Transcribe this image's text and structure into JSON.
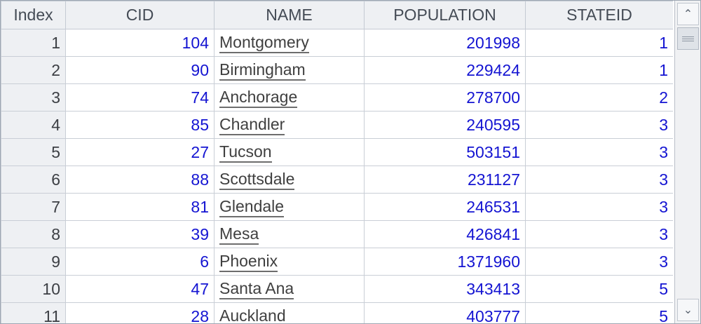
{
  "columns": {
    "index": "Index",
    "cid": "CID",
    "name": "NAME",
    "population": "POPULATION",
    "stateid": "STATEID"
  },
  "rows": [
    {
      "index": "1",
      "cid": "104",
      "name": "Montgomery",
      "population": "201998",
      "stateid": "1"
    },
    {
      "index": "2",
      "cid": "90",
      "name": "Birmingham",
      "population": "229424",
      "stateid": "1"
    },
    {
      "index": "3",
      "cid": "74",
      "name": "Anchorage",
      "population": "278700",
      "stateid": "2"
    },
    {
      "index": "4",
      "cid": "85",
      "name": "Chandler",
      "population": "240595",
      "stateid": "3"
    },
    {
      "index": "5",
      "cid": "27",
      "name": "Tucson",
      "population": "503151",
      "stateid": "3"
    },
    {
      "index": "6",
      "cid": "88",
      "name": "Scottsdale",
      "population": "231127",
      "stateid": "3"
    },
    {
      "index": "7",
      "cid": "81",
      "name": "Glendale",
      "population": "246531",
      "stateid": "3"
    },
    {
      "index": "8",
      "cid": "39",
      "name": "Mesa",
      "population": "426841",
      "stateid": "3"
    },
    {
      "index": "9",
      "cid": "6",
      "name": "Phoenix",
      "population": "1371960",
      "stateid": "3"
    },
    {
      "index": "10",
      "cid": "47",
      "name": "Santa Ana",
      "population": "343413",
      "stateid": "5"
    },
    {
      "index": "11",
      "cid": "28",
      "name": "Auckland",
      "population": "403777",
      "stateid": "5"
    }
  ],
  "scrollbar": {
    "up_icon": "chevron-up-icon",
    "down_icon": "chevron-down-icon",
    "up_glyph": "⌃",
    "down_glyph": "⌄"
  }
}
